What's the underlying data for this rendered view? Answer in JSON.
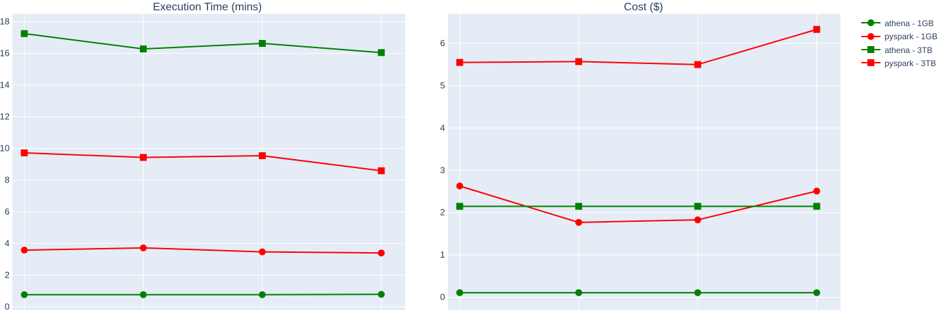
{
  "chart_data": [
    {
      "type": "line",
      "title": "Execution Time (mins)",
      "xlabel": "",
      "ylabel": "",
      "x": [
        1,
        2,
        3,
        4
      ],
      "xlim": [
        0.9,
        4.2
      ],
      "ylim": [
        -0.2,
        18.5
      ],
      "yticks": [
        0,
        2,
        4,
        6,
        8,
        10,
        12,
        14,
        16,
        18
      ],
      "grid": true,
      "series": [
        {
          "name": "athena - 1GB",
          "color": "#008000",
          "marker": "circle",
          "values": [
            0.77,
            0.77,
            0.77,
            0.79
          ]
        },
        {
          "name": "pyspark - 1GB",
          "color": "#ff0000",
          "marker": "circle",
          "values": [
            3.58,
            3.72,
            3.47,
            3.4
          ]
        },
        {
          "name": "athena - 3TB",
          "color": "#008000",
          "marker": "square",
          "values": [
            17.25,
            16.28,
            16.63,
            16.05
          ]
        },
        {
          "name": "pyspark - 3TB",
          "color": "#ff0000",
          "marker": "square",
          "values": [
            9.72,
            9.43,
            9.54,
            8.59
          ]
        }
      ]
    },
    {
      "type": "line",
      "title": "Cost ($)",
      "xlabel": "",
      "ylabel": "",
      "x": [
        1,
        2,
        3,
        4
      ],
      "xlim": [
        0.9,
        4.2
      ],
      "ylim": [
        -0.3,
        6.7
      ],
      "yticks": [
        0,
        1,
        2,
        3,
        4,
        5,
        6
      ],
      "grid": true,
      "series": [
        {
          "name": "athena - 1GB",
          "color": "#008000",
          "marker": "circle",
          "values": [
            0.11,
            0.11,
            0.11,
            0.11
          ]
        },
        {
          "name": "pyspark - 1GB",
          "color": "#ff0000",
          "marker": "circle",
          "values": [
            2.63,
            1.77,
            1.83,
            2.51
          ]
        },
        {
          "name": "athena - 3TB",
          "color": "#008000",
          "marker": "square",
          "values": [
            2.15,
            2.15,
            2.15,
            2.15
          ]
        },
        {
          "name": "pyspark - 3TB",
          "color": "#ff0000",
          "marker": "square",
          "values": [
            5.55,
            5.57,
            5.5,
            6.33
          ]
        }
      ]
    }
  ],
  "legend": {
    "position": "top-right",
    "entries": [
      {
        "name": "athena - 1GB",
        "color": "#008000",
        "marker": "circle"
      },
      {
        "name": "pyspark - 1GB",
        "color": "#ff0000",
        "marker": "circle"
      },
      {
        "name": "athena - 3TB",
        "color": "#008000",
        "marker": "square"
      },
      {
        "name": "pyspark - 3TB",
        "color": "#ff0000",
        "marker": "square"
      }
    ]
  }
}
